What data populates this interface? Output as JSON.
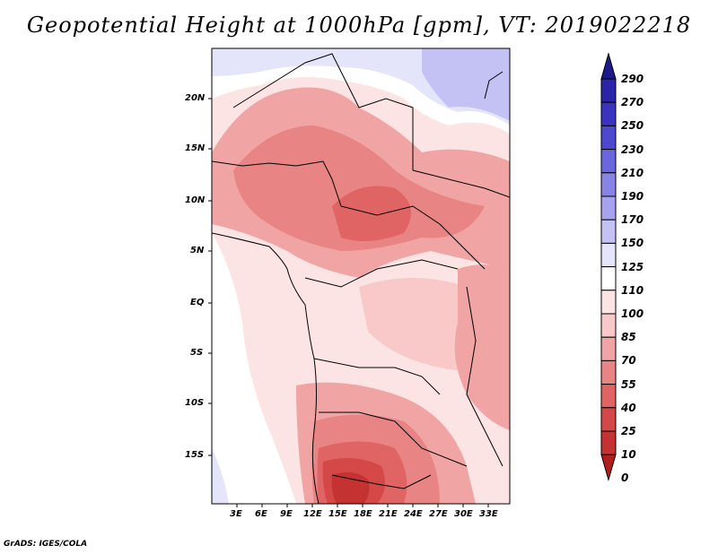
{
  "title": "Geopotential Height at 1000hPa [gpm], VT: 2019022218",
  "footer": "GrADS: IGES/COLA",
  "map": {
    "lon_ticks": [
      "3E",
      "6E",
      "9E",
      "12E",
      "15E",
      "18E",
      "21E",
      "24E",
      "27E",
      "30E",
      "33E"
    ],
    "lat_ticks": [
      "20N",
      "15N",
      "10N",
      "5N",
      "EQ",
      "5S",
      "10S",
      "15S"
    ]
  },
  "legend": {
    "levels": [
      "290",
      "270",
      "250",
      "230",
      "210",
      "190",
      "170",
      "150",
      "125",
      "110",
      "100",
      "85",
      "70",
      "55",
      "40",
      "25",
      "10",
      "0"
    ],
    "colors": [
      "#1e1a8c",
      "#2a24a8",
      "#3a33c0",
      "#4d48d0",
      "#6a66dc",
      "#8884e6",
      "#a6a2ee",
      "#c4c2f4",
      "#e4e4fa",
      "#ffffff",
      "#fde4e4",
      "#f9c8c8",
      "#f1a4a4",
      "#e88484",
      "#e06464",
      "#d44848",
      "#c43232",
      "#b01e1e"
    ]
  }
}
